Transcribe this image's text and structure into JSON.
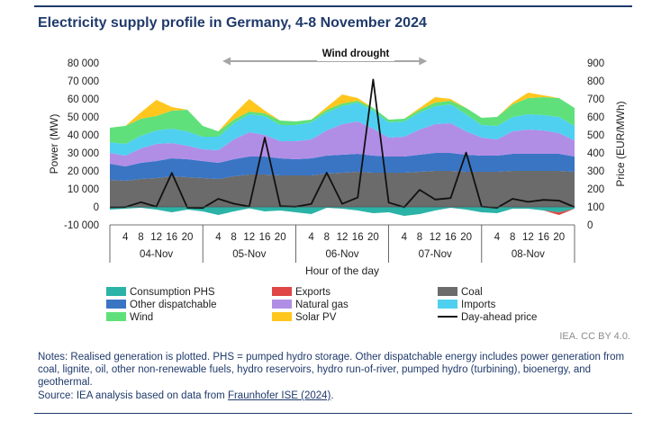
{
  "title": "Electricity supply profile in Germany, 4-8 November 2024",
  "credit": "IEA. CC BY 4.0.",
  "notes": "Notes: Realised generation is plotted. PHS = pumped hydro storage. Other dispatchable energy includes power generation from coal, lignite, oil, other non-renewable fuels, hydro reservoirs, hydro run-of-river, pumped hydro (turbining), bioenergy, and geothermal.",
  "source_prefix": "Source: IEA analysis based on data from ",
  "source_link": "Fraunhofer ISE (2024)",
  "source_suffix": ".",
  "chart_data": {
    "type": "area",
    "annotation": "Wind drought",
    "ylabel": "Power (MW)",
    "y2label": "Price (EUR/MWh)",
    "xlabel": "Hour of the day",
    "ylim": [
      -10000,
      80000
    ],
    "y2lim": [
      0,
      900
    ],
    "yticks": [
      -10000,
      0,
      10000,
      20000,
      30000,
      40000,
      50000,
      60000,
      70000,
      80000
    ],
    "ytick_labels": [
      "-10 000",
      "0",
      "10 000",
      "20 000",
      "30 000",
      "40 000",
      "50 000",
      "60 000",
      "70 000",
      "80 000"
    ],
    "y2ticks": [
      0,
      100,
      200,
      300,
      400,
      500,
      600,
      700,
      800,
      900
    ],
    "y2tick_labels": [
      "0",
      "100",
      "200",
      "300",
      "400",
      "500",
      "600",
      "700",
      "800",
      "900"
    ],
    "x_hours": [
      0,
      4,
      8,
      12,
      16,
      20,
      24,
      28,
      32,
      36,
      40,
      44,
      48,
      52,
      56,
      60,
      64,
      68,
      72,
      76,
      80,
      84,
      88,
      92,
      96,
      100,
      104,
      108,
      112,
      116,
      120
    ],
    "hour_ticks": [
      "4",
      "8",
      "12",
      "16",
      "20"
    ],
    "days": [
      "04-Nov",
      "05-Nov",
      "06-Nov",
      "07-Nov",
      "08-Nov"
    ],
    "grid": false,
    "legend_position": "bottom",
    "legend_order": [
      "Consumption PHS",
      "Exports",
      "Coal",
      "Other dispatchable",
      "Natural gas",
      "Imports",
      "Wind",
      "Solar PV",
      "Day-ahead price"
    ],
    "series": [
      {
        "name": "Consumption PHS",
        "color": "#2ab3a6",
        "kind": "negative",
        "values": [
          -1500,
          -1000,
          -500,
          -1500,
          -3000,
          -1500,
          -2500,
          -4500,
          -2500,
          -800,
          -2500,
          -2000,
          -3000,
          -4000,
          -500,
          -1000,
          -2000,
          -3500,
          -3000,
          -5000,
          -4000,
          -2000,
          -500,
          -1500,
          -3000,
          -3500,
          -1000,
          -1000,
          -2000,
          -3000,
          -1000
        ]
      },
      {
        "name": "Exports",
        "color": "#e04646",
        "kind": "negative",
        "values": [
          0,
          0,
          0,
          0,
          0,
          0,
          0,
          0,
          0,
          0,
          0,
          0,
          0,
          0,
          0,
          0,
          0,
          0,
          0,
          0,
          0,
          0,
          0,
          0,
          0,
          0,
          0,
          0,
          0,
          -1500,
          0
        ]
      },
      {
        "name": "Coal",
        "color": "#6b6b6b",
        "kind": "stack",
        "values": [
          15000,
          14500,
          15500,
          16000,
          17000,
          16500,
          16000,
          15500,
          17000,
          18000,
          18000,
          17500,
          17500,
          17500,
          18500,
          19000,
          19500,
          19000,
          19000,
          19000,
          19500,
          20000,
          20000,
          19500,
          19500,
          19500,
          20000,
          20000,
          20000,
          20000,
          19500
        ]
      },
      {
        "name": "Other dispatchable",
        "color": "#3a75c4",
        "kind": "stack",
        "values": [
          9000,
          8000,
          9000,
          9500,
          10000,
          10000,
          9500,
          9000,
          9500,
          10000,
          10000,
          9500,
          9000,
          9500,
          10000,
          10000,
          10000,
          9500,
          9000,
          9000,
          9500,
          10000,
          10000,
          9500,
          9000,
          9000,
          9500,
          9500,
          9500,
          9500,
          8500
        ]
      },
      {
        "name": "Natural gas",
        "color": "#b08ee6",
        "kind": "stack",
        "values": [
          6000,
          6000,
          8000,
          9500,
          8500,
          7500,
          6500,
          7000,
          11000,
          13500,
          12000,
          9500,
          10000,
          10500,
          14000,
          17000,
          18000,
          15000,
          10500,
          11000,
          14000,
          16000,
          16500,
          13000,
          10000,
          9000,
          12500,
          13500,
          13000,
          11500,
          9000
        ]
      },
      {
        "name": "Imports",
        "color": "#4fd0f0",
        "kind": "stack",
        "values": [
          6000,
          6500,
          7000,
          7500,
          8000,
          8000,
          7000,
          7500,
          9000,
          10000,
          10500,
          9000,
          9000,
          9500,
          10000,
          10000,
          10500,
          10000,
          8500,
          8500,
          9500,
          10000,
          10500,
          9500,
          7000,
          7500,
          8000,
          8500,
          8500,
          9000,
          8000
        ]
      },
      {
        "name": "Wind",
        "color": "#5fe07a",
        "kind": "stack",
        "values": [
          8000,
          10000,
          9500,
          8000,
          10000,
          12000,
          6000,
          3000,
          2000,
          1500,
          1500,
          2500,
          2000,
          1500,
          1500,
          1500,
          1000,
          1500,
          1500,
          1500,
          1500,
          2000,
          2000,
          3500,
          4000,
          5000,
          7000,
          9000,
          10000,
          10500,
          10000
        ]
      },
      {
        "name": "Solar PV",
        "color": "#ffc61e",
        "kind": "stack",
        "values": [
          0,
          0,
          3500,
          9000,
          2000,
          0,
          0,
          0,
          3000,
          7000,
          1500,
          0,
          0,
          0,
          1500,
          5000,
          1500,
          0,
          0,
          0,
          1000,
          3000,
          1000,
          0,
          0,
          0,
          1000,
          3000,
          1000,
          0,
          0
        ]
      },
      {
        "name": "Day-ahead price",
        "color": "#111111",
        "kind": "line",
        "axis": "right",
        "values": [
          98,
          99,
          126,
          101,
          289,
          96,
          94,
          145,
          118,
          102,
          485,
          104,
          101,
          116,
          290,
          117,
          152,
          808,
          124,
          98,
          195,
          141,
          149,
          402,
          102,
          95,
          145,
          128,
          139,
          135,
          99
        ]
      }
    ]
  }
}
